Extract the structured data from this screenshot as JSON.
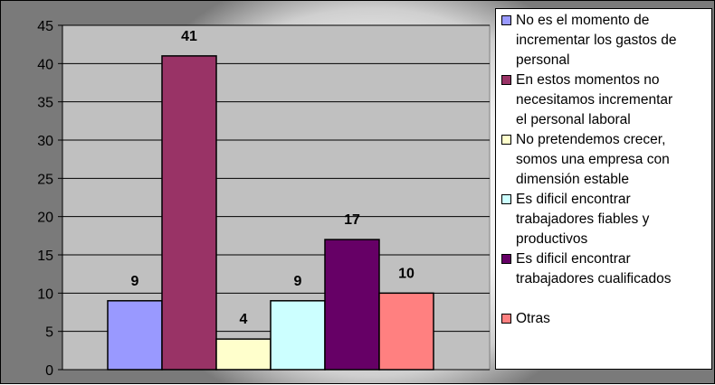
{
  "chart_data": {
    "type": "bar",
    "categories": [
      "No es el momento de incrementar los gastos de personal",
      "En estos momentos no necesitamos incrementar el personal laboral",
      "No pretendemos crecer, somos una empresa con dimensión estable",
      "Es dificil encontrar trabajadores fiables y productivos",
      "Es dificil encontrar trabajadores cualificados",
      "Otras"
    ],
    "values": [
      9,
      41,
      4,
      9,
      17,
      10
    ],
    "data_labels": [
      "9",
      "41",
      "4",
      "9",
      "17",
      "10"
    ],
    "colors": [
      "#9999ff",
      "#993366",
      "#ffffcc",
      "#ccffff",
      "#660066",
      "#ff8080"
    ],
    "ylim": [
      0,
      45
    ],
    "yticks": [
      0,
      5,
      10,
      15,
      20,
      25,
      30,
      35,
      40,
      45
    ],
    "ytick_labels": [
      "0",
      "5",
      "10",
      "15",
      "20",
      "25",
      "30",
      "35",
      "40",
      "45"
    ],
    "grid": true,
    "legend_position": "right",
    "plot_background": "#c0c0c0",
    "title": "",
    "xlabel": "",
    "ylabel": ""
  },
  "legend": {
    "entries": [
      {
        "lines": [
          "No es el momento de",
          "incrementar los gastos de",
          "personal"
        ],
        "color": "#9999ff"
      },
      {
        "lines": [
          "En estos momentos no",
          "necesitamos incrementar",
          "el personal laboral"
        ],
        "color": "#993366"
      },
      {
        "lines": [
          "No pretendemos crecer,",
          "somos una empresa con",
          "dimensión estable"
        ],
        "color": "#ffffcc"
      },
      {
        "lines": [
          "Es dificil encontrar",
          "trabajadores fiables y",
          "productivos"
        ],
        "color": "#ccffff"
      },
      {
        "lines": [
          "Es dificil encontrar",
          "trabajadores cualificados"
        ],
        "color": "#660066"
      },
      {
        "lines": [
          "Otras"
        ],
        "color": "#ff8080"
      }
    ]
  }
}
